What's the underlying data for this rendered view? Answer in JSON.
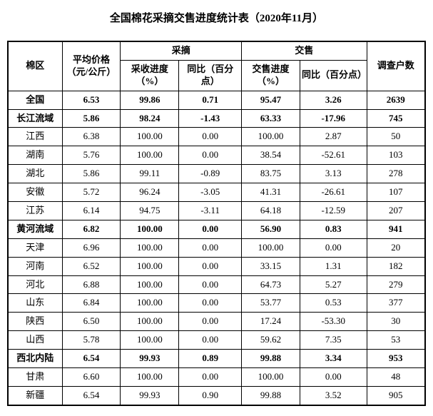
{
  "title": "全国棉花采摘交售进度统计表（2020年11月）",
  "headers": {
    "region": "棉区",
    "price": "平均价格（元/公斤）",
    "harvest_group": "采摘",
    "harvest_prog": "采收进度（%）",
    "harvest_yoy": "同比（百分点）",
    "sale_group": "交售",
    "sale_prog": "交售进度（%）",
    "sale_yoy": "同比（百分点）",
    "survey": "调查户数"
  },
  "rows": [
    {
      "bold": true,
      "region": "全国",
      "price": "6.53",
      "hp": "99.86",
      "hy": "0.71",
      "sp": "95.47",
      "sy": "3.26",
      "survey": "2639"
    },
    {
      "bold": true,
      "region": "长江流域",
      "price": "5.86",
      "hp": "98.24",
      "hy": "-1.43",
      "sp": "63.33",
      "sy": "-17.96",
      "survey": "745"
    },
    {
      "bold": false,
      "region": "江西",
      "price": "6.38",
      "hp": "100.00",
      "hy": "0.00",
      "sp": "100.00",
      "sy": "2.87",
      "survey": "50"
    },
    {
      "bold": false,
      "region": "湖南",
      "price": "5.76",
      "hp": "100.00",
      "hy": "0.00",
      "sp": "38.54",
      "sy": "-52.61",
      "survey": "103"
    },
    {
      "bold": false,
      "region": "湖北",
      "price": "5.86",
      "hp": "99.11",
      "hy": "-0.89",
      "sp": "83.75",
      "sy": "3.13",
      "survey": "278"
    },
    {
      "bold": false,
      "region": "安徽",
      "price": "5.72",
      "hp": "96.24",
      "hy": "-3.05",
      "sp": "41.31",
      "sy": "-26.61",
      "survey": "107"
    },
    {
      "bold": false,
      "region": "江苏",
      "price": "6.14",
      "hp": "94.75",
      "hy": "-3.11",
      "sp": "64.18",
      "sy": "-12.59",
      "survey": "207"
    },
    {
      "bold": true,
      "region": "黄河流域",
      "price": "6.82",
      "hp": "100.00",
      "hy": "0.00",
      "sp": "56.90",
      "sy": "0.83",
      "survey": "941"
    },
    {
      "bold": false,
      "region": "天津",
      "price": "6.96",
      "hp": "100.00",
      "hy": "0.00",
      "sp": "100.00",
      "sy": "0.00",
      "survey": "20"
    },
    {
      "bold": false,
      "region": "河南",
      "price": "6.52",
      "hp": "100.00",
      "hy": "0.00",
      "sp": "33.15",
      "sy": "1.31",
      "survey": "182"
    },
    {
      "bold": false,
      "region": "河北",
      "price": "6.88",
      "hp": "100.00",
      "hy": "0.00",
      "sp": "64.73",
      "sy": "5.27",
      "survey": "279"
    },
    {
      "bold": false,
      "region": "山东",
      "price": "6.84",
      "hp": "100.00",
      "hy": "0.00",
      "sp": "53.77",
      "sy": "0.53",
      "survey": "377"
    },
    {
      "bold": false,
      "region": "陕西",
      "price": "6.50",
      "hp": "100.00",
      "hy": "0.00",
      "sp": "17.24",
      "sy": "-53.30",
      "survey": "30"
    },
    {
      "bold": false,
      "region": "山西",
      "price": "5.78",
      "hp": "100.00",
      "hy": "0.00",
      "sp": "59.62",
      "sy": "7.35",
      "survey": "53"
    },
    {
      "bold": true,
      "region": "西北内陆",
      "price": "6.54",
      "hp": "99.93",
      "hy": "0.89",
      "sp": "99.88",
      "sy": "3.34",
      "survey": "953"
    },
    {
      "bold": false,
      "region": "甘肃",
      "price": "6.60",
      "hp": "100.00",
      "hy": "0.00",
      "sp": "100.00",
      "sy": "0.00",
      "survey": "48"
    },
    {
      "bold": false,
      "region": "新疆",
      "price": "6.54",
      "hp": "99.93",
      "hy": "0.90",
      "sp": "99.88",
      "sy": "3.52",
      "survey": "905"
    }
  ]
}
